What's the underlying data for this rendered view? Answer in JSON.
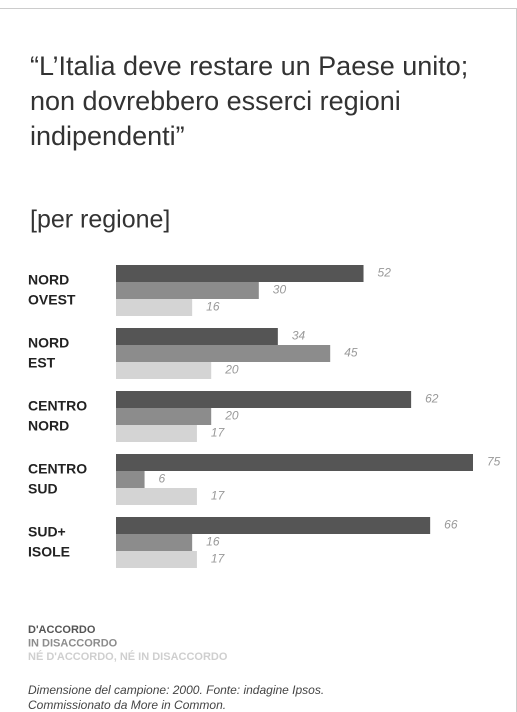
{
  "chart_data": {
    "type": "bar",
    "orientation": "horizontal",
    "title": [
      "“L’Italia deve restare un Paese unito;",
      "non dovrebbero esserci regioni",
      "indipendenti”"
    ],
    "subtitle": "[per regione]",
    "categories": [
      [
        "NORD",
        "OVEST"
      ],
      [
        "NORD",
        "EST"
      ],
      [
        "CENTRO",
        "NORD"
      ],
      [
        "CENTRO",
        "SUD"
      ],
      [
        "SUD+",
        "ISOLE"
      ]
    ],
    "series": [
      {
        "name": "D'ACCORDO",
        "color": "#555555",
        "values": [
          52,
          34,
          62,
          75,
          66
        ]
      },
      {
        "name": "IN DISACCORDO",
        "color": "#8c8c8c",
        "values": [
          30,
          45,
          20,
          6,
          16
        ]
      },
      {
        "name": "NÉ D'ACCORDO, NÉ IN DISACCORDO",
        "color": "#d4d4d4",
        "values": [
          16,
          20,
          17,
          17,
          17
        ]
      }
    ],
    "xlim": [
      0,
      75
    ],
    "note": [
      "Dimensione del campione: 2000. Fonte: indagine Ipsos.",
      "Commissionato da More in Common."
    ]
  }
}
